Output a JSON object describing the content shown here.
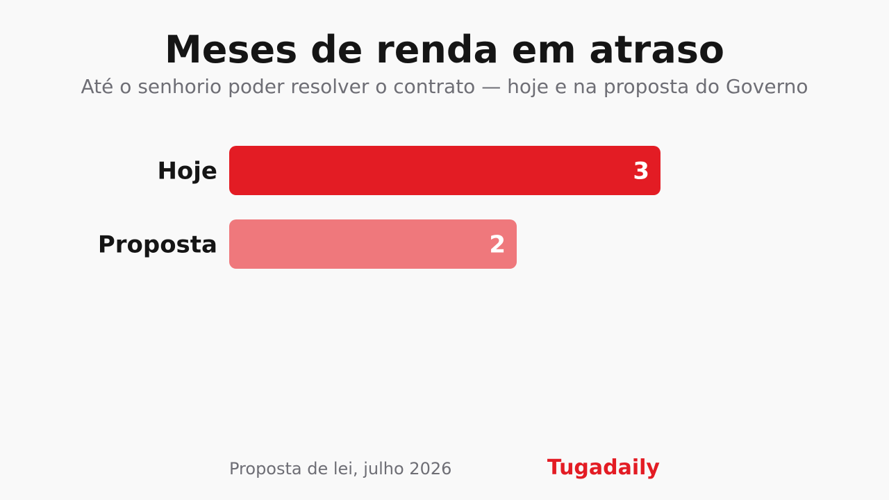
{
  "header": {
    "title": "Meses de renda em atraso",
    "subtitle": "Até o senhorio poder resolver o contrato — hoje e na proposta do Governo"
  },
  "chart_data": {
    "type": "bar",
    "orientation": "horizontal",
    "categories": [
      "Hoje",
      "Proposta"
    ],
    "values": [
      3,
      2
    ],
    "value_labels": [
      "3",
      "2"
    ],
    "colors": [
      "#e31c24",
      "#ef787c"
    ],
    "xlim": [
      0,
      3
    ],
    "grid": false,
    "title": "Meses de renda em atraso",
    "subtitle": "Até o senhorio poder resolver o contrato — hoje e na proposta do Governo"
  },
  "footer": {
    "source": "Proposta de lei, julho 2026",
    "brand": "Tugadaily",
    "brand_color": "#e31c24"
  }
}
